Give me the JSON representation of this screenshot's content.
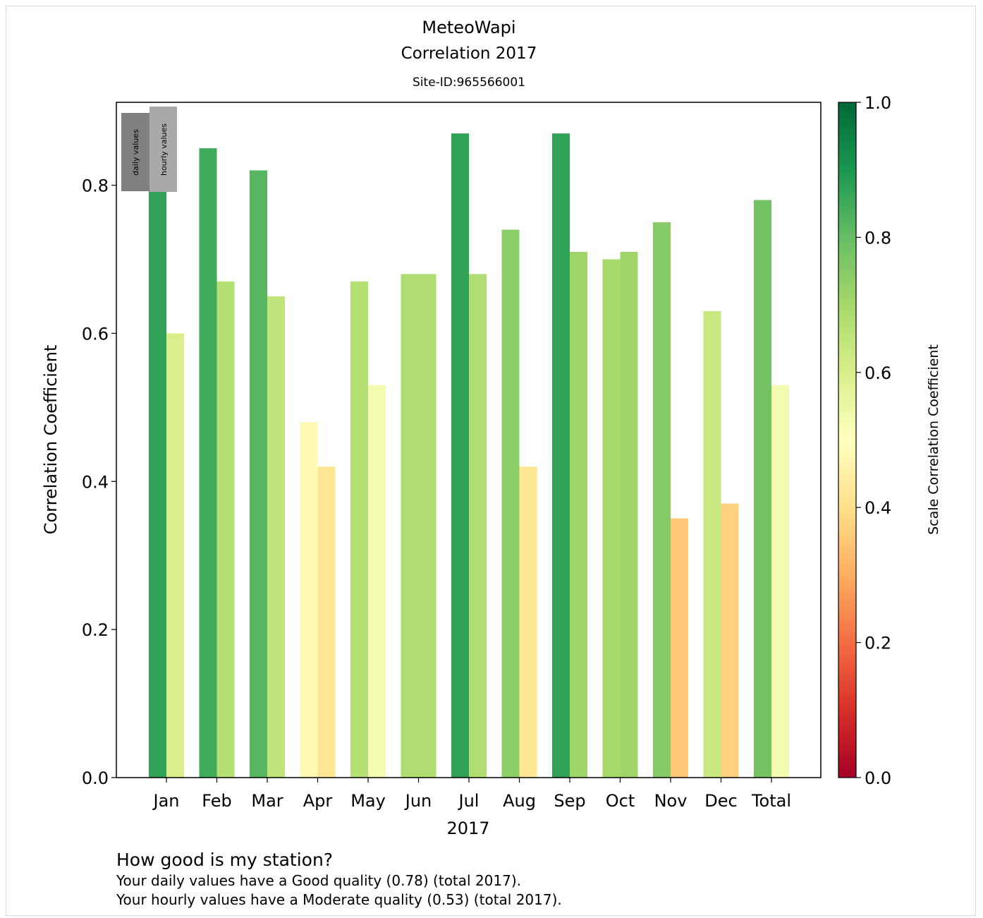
{
  "header": {
    "title": "MeteoWapi",
    "subtitle": "Correlation 2017",
    "site": "Site-ID:965566001"
  },
  "legend": {
    "daily_label": "daily values",
    "hourly_label": "hourly values",
    "daily_color": "#808080",
    "hourly_color": "#a9a9a9"
  },
  "chart_data": {
    "type": "bar",
    "title": "MeteoWapi",
    "subtitle": "Correlation 2017",
    "xlabel": "2017",
    "ylabel": "Correlation Coefficient",
    "ylim": [
      0,
      0.912
    ],
    "yticks": [
      "0.0",
      "0.2",
      "0.4",
      "0.6",
      "0.8"
    ],
    "grid": false,
    "legend_position": "top-left",
    "categories": [
      "Jan",
      "Feb",
      "Mar",
      "Apr",
      "May",
      "Jun",
      "Jul",
      "Aug",
      "Sep",
      "Oct",
      "Nov",
      "Dec",
      "Total"
    ],
    "series": [
      {
        "name": "daily values",
        "values": [
          0.87,
          0.85,
          0.82,
          0.48,
          0.67,
          0.68,
          0.87,
          0.74,
          0.87,
          0.7,
          0.75,
          0.63,
          0.78
        ]
      },
      {
        "name": "hourly values",
        "values": [
          0.6,
          0.67,
          0.65,
          0.42,
          0.53,
          0.68,
          0.68,
          0.42,
          0.71,
          0.71,
          0.35,
          0.37,
          0.53
        ]
      }
    ],
    "colorbar": {
      "label": "Scale Correlation Coefficient",
      "range": [
        0,
        1
      ],
      "ticks": [
        "0.0",
        "0.2",
        "0.4",
        "0.6",
        "0.8",
        "1.0"
      ],
      "colormap": "RdYlGn",
      "stops": [
        "#a50026",
        "#d73027",
        "#f46d43",
        "#fdae61",
        "#fee08b",
        "#ffffbf",
        "#d9ef8b",
        "#a6d96a",
        "#66bd63",
        "#1a9850",
        "#006837"
      ]
    }
  },
  "footer": {
    "heading": "How good is my station?",
    "daily_text": "Your daily values have a Good quality (0.78) (total 2017).",
    "hourly_text": "Your hourly values have a Moderate quality (0.53) (total 2017)."
  }
}
